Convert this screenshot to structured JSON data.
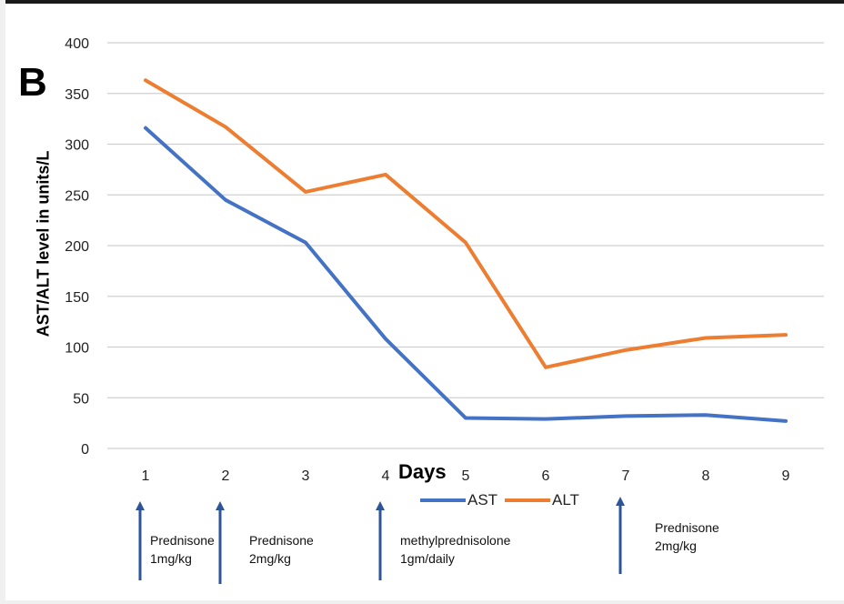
{
  "chart_data": {
    "type": "line",
    "panel_label": "B",
    "title": "",
    "xlabel": "Days",
    "ylabel": "AST/ALT level in units/L",
    "x": [
      1,
      2,
      3,
      4,
      5,
      6,
      7,
      8,
      9
    ],
    "ylim": [
      0,
      400
    ],
    "yticks": [
      0,
      50,
      100,
      150,
      200,
      250,
      300,
      350,
      400
    ],
    "grid": true,
    "legend_position": "bottom",
    "series": [
      {
        "name": "AST",
        "color": "#4472c4",
        "values": [
          316,
          245,
          203,
          108,
          30,
          29,
          32,
          33,
          27
        ]
      },
      {
        "name": "ALT",
        "color": "#ed7d31",
        "values": [
          363,
          317,
          253,
          270,
          203,
          80,
          97,
          109,
          112
        ]
      }
    ],
    "annotations": [
      {
        "day": 1,
        "text": "Prednisone\n1mg/kg"
      },
      {
        "day": 2,
        "text": "Prednisone\n2mg/kg"
      },
      {
        "day": 4,
        "text": "methylprednisolone\n1gm/daily"
      },
      {
        "day": 7,
        "text": "Prednisone\n2mg/kg"
      }
    ],
    "arrow_color": "#2e5597"
  }
}
